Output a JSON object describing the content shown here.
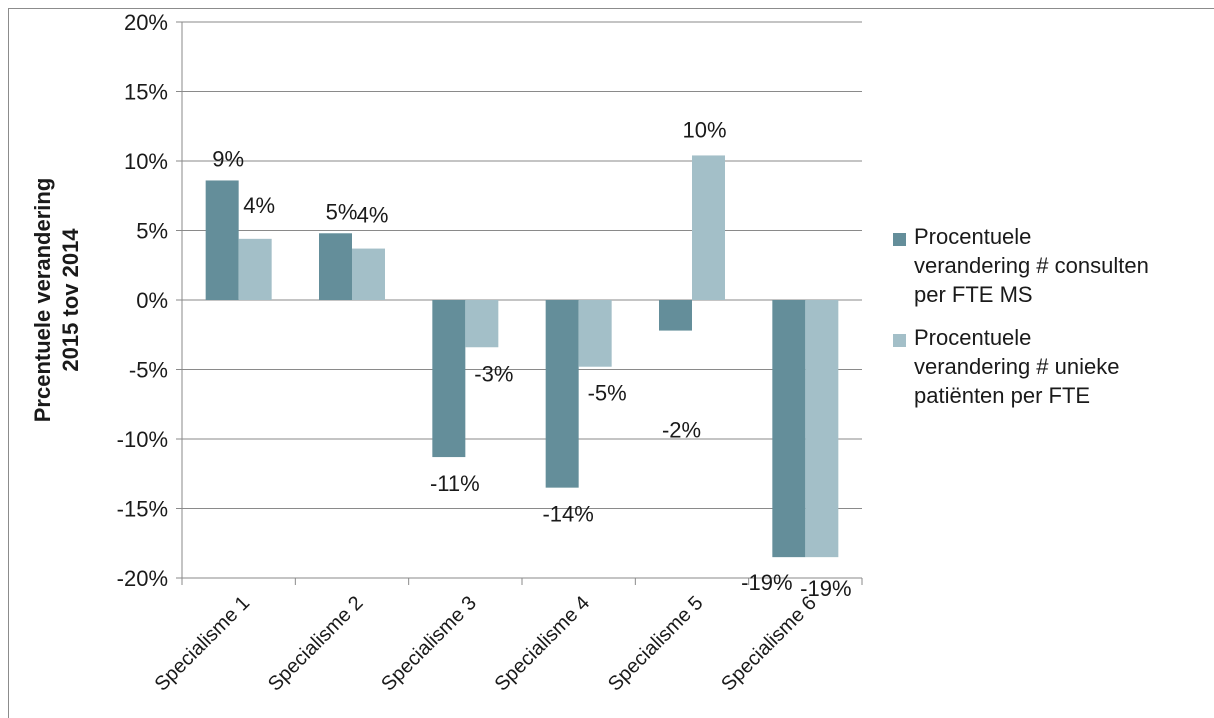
{
  "chart_data": {
    "type": "bar",
    "title": "",
    "xlabel": "",
    "ylabel": "Prcentuele verandering 2015 tov 2014",
    "categories": [
      "Specialisme 1",
      "Specialisme 2",
      "Specialisme 3",
      "Specialisme 4",
      "Specialisme 5",
      "Specialisme 6"
    ],
    "ylim": [
      -20,
      20
    ],
    "yticks": [
      20,
      15,
      10,
      5,
      0,
      -5,
      -10,
      -15,
      -20
    ],
    "ytick_labels": [
      "20%",
      "15%",
      "10%",
      "5%",
      "0%",
      "-5%",
      "-10%",
      "-15%",
      "-20%"
    ],
    "grid": true,
    "legend_position": "right",
    "series": [
      {
        "name": "Procentuele verandering # consulten per FTE MS",
        "color": "#648e9a",
        "values": [
          8.6,
          4.8,
          -11.3,
          -13.5,
          -2.2,
          -18.5
        ],
        "labels": [
          "9%",
          "5%",
          "-11%",
          "-14%",
          "-2%",
          "-19%"
        ]
      },
      {
        "name": "Procentuele verandering # unieke patiënten per FTE",
        "color": "#a3bfc8",
        "values": [
          4.4,
          3.7,
          -3.4,
          -4.8,
          10.4,
          -18.5
        ],
        "labels": [
          "4%",
          "4%",
          "-3%",
          "-5%",
          "10%",
          "-19%"
        ]
      }
    ]
  },
  "legend": {
    "items": [
      {
        "lines": [
          "Procentuele",
          "verandering # consulten",
          "per FTE MS"
        ]
      },
      {
        "lines": [
          "Procentuele",
          "verandering # unieke",
          "patiënten per FTE"
        ]
      }
    ]
  }
}
